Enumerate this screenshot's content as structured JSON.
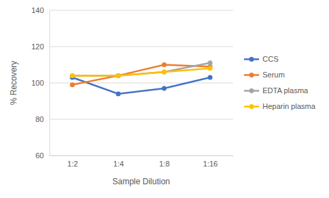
{
  "chart_data": {
    "type": "line",
    "x_label": "Sample Dilution",
    "y_label": "% Recovery",
    "categories": [
      "1:2",
      "1:4",
      "1:8",
      "1:16"
    ],
    "series": [
      {
        "name": "CCS",
        "color": "#4472c4",
        "values": [
          103,
          94,
          97,
          103
        ]
      },
      {
        "name": "Serum",
        "color": "#ed7d31",
        "values": [
          99,
          104,
          110,
          109
        ]
      },
      {
        "name": "EDTA plasma",
        "color": "#a5a5a5",
        "values": [
          104,
          104,
          106,
          111
        ]
      },
      {
        "name": "Heparin plasma",
        "color": "#ffc000",
        "values": [
          104,
          104,
          106,
          108
        ]
      }
    ],
    "ylim": [
      60,
      140
    ],
    "yticks": [
      60,
      80,
      100,
      120,
      140
    ],
    "grid": true,
    "legend": "right",
    "marker": "circle"
  }
}
